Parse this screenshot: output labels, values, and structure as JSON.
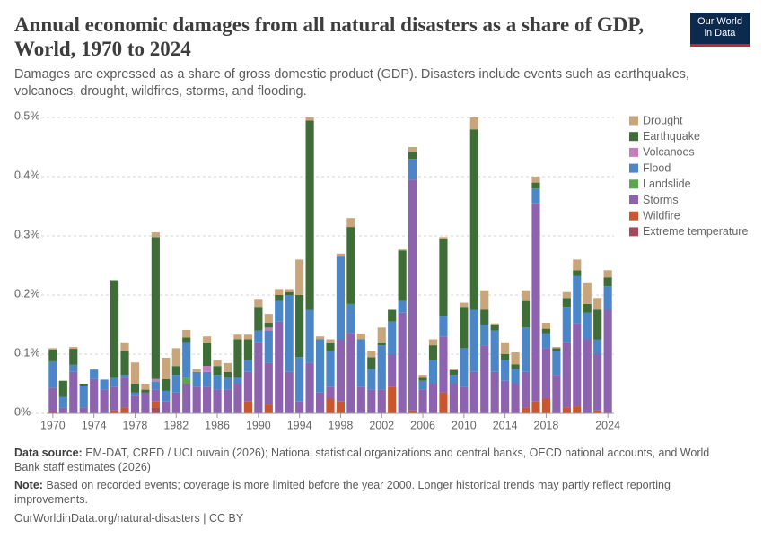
{
  "logo": {
    "lines": [
      "Our World",
      "in Data"
    ]
  },
  "footer": {
    "source_label": "Data source:",
    "source": "EM-DAT, CRED / UCLouvain (2026); National statistical organizations and central banks, OECD national accounts, and World Bank staff estimates (2026)",
    "note_label": "Note:",
    "note": "Based on recorded events; coverage is more limited before the year 2000. Longer historical trends may partly reflect reporting improvements.",
    "url": "OurWorldinData.org/natural-disasters | CC BY"
  },
  "chart_data": {
    "type": "stacked_bar",
    "title": "Annual economic damages from all natural disasters as a share of GDP, World, 1970 to 2024",
    "subtitle": "Damages are expressed as a share of gross domestic product (GDP). Disasters include events such as earthquakes, volcanoes, drought, wildfires, storms, and flooding.",
    "x": [
      1970,
      1971,
      1972,
      1973,
      1974,
      1975,
      1976,
      1977,
      1978,
      1979,
      1980,
      1981,
      1982,
      1983,
      1984,
      1985,
      1986,
      1987,
      1988,
      1989,
      1990,
      1991,
      1992,
      1993,
      1994,
      1995,
      1996,
      1997,
      1998,
      1999,
      2000,
      2001,
      2002,
      2003,
      2004,
      2005,
      2006,
      2007,
      2008,
      2009,
      2010,
      2011,
      2012,
      2013,
      2014,
      2015,
      2016,
      2017,
      2018,
      2019,
      2020,
      2021,
      2022,
      2023,
      2024
    ],
    "xlim": [
      1969.4,
      2024.6
    ],
    "xticks": [
      1970,
      1974,
      1978,
      1982,
      1986,
      1990,
      1994,
      1998,
      2002,
      2006,
      2010,
      2014,
      2018,
      2024
    ],
    "ylim": [
      0,
      0.5
    ],
    "yticks": [
      {
        "value": 0,
        "label": "0%"
      },
      {
        "value": 0.1,
        "label": "0.1%"
      },
      {
        "value": 0.2,
        "label": "0.2%"
      },
      {
        "value": 0.3,
        "label": "0.3%"
      },
      {
        "value": 0.4,
        "label": "0.4%"
      },
      {
        "value": 0.5,
        "label": "0.5%"
      }
    ],
    "grid": true,
    "legend": "right",
    "series": [
      {
        "name": "Drought",
        "color": "#c8a57b",
        "values": [
          0.002,
          0,
          0.003,
          0,
          0,
          0,
          0,
          0.015,
          0.036,
          0.01,
          0.008,
          0.036,
          0.03,
          0.013,
          0.005,
          0.01,
          0.01,
          0.015,
          0.008,
          0.008,
          0.012,
          0.015,
          0.01,
          0.005,
          0.06,
          0.005,
          0.005,
          0.005,
          0.005,
          0.015,
          0.01,
          0.01,
          0.025,
          0,
          0.002,
          0.008,
          0.005,
          0.01,
          0.003,
          0.002,
          0.007,
          0.02,
          0.033,
          0.002,
          0.02,
          0.02,
          0.018,
          0.01,
          0.01,
          0.002,
          0.01,
          0.018,
          0.035,
          0.02,
          0.012
        ]
      },
      {
        "name": "Earthquake",
        "color": "#3f6d37",
        "values": [
          0.02,
          0.027,
          0.027,
          0.003,
          0,
          0,
          0.165,
          0.04,
          0.015,
          0.005,
          0.24,
          0.02,
          0.015,
          0.008,
          0,
          0.04,
          0.015,
          0.01,
          0.065,
          0.035,
          0.04,
          0.008,
          0.01,
          0.005,
          0.105,
          0.32,
          0,
          0.015,
          0,
          0.13,
          0,
          0.02,
          0.005,
          0.02,
          0.085,
          0.012,
          0.005,
          0.025,
          0.13,
          0.008,
          0.07,
          0.305,
          0.025,
          0.01,
          0.01,
          0.008,
          0.045,
          0.01,
          0.008,
          0.005,
          0.015,
          0.01,
          0.015,
          0.05,
          0.015
        ]
      },
      {
        "name": "Volcanoes",
        "color": "#c57dc0",
        "values": [
          0,
          0,
          0,
          0,
          0,
          0,
          0,
          0,
          0,
          0,
          0.005,
          0,
          0,
          0,
          0,
          0.01,
          0,
          0,
          0,
          0,
          0,
          0.005,
          0,
          0,
          0,
          0,
          0,
          0,
          0,
          0,
          0,
          0,
          0,
          0,
          0,
          0,
          0,
          0,
          0,
          0,
          0,
          0,
          0,
          0,
          0,
          0,
          0,
          0,
          0,
          0,
          0,
          0,
          0,
          0,
          0
        ]
      },
      {
        "name": "Flood",
        "color": "#4b86c8",
        "values": [
          0.045,
          0.018,
          0.012,
          0.037,
          0.016,
          0.017,
          0.015,
          0.005,
          0.005,
          0,
          0.013,
          0.018,
          0.03,
          0.06,
          0.025,
          0.025,
          0.025,
          0.02,
          0.01,
          0.02,
          0.02,
          0.055,
          0.035,
          0.13,
          0.075,
          0.09,
          0.09,
          0.06,
          0.14,
          0.05,
          0.08,
          0.035,
          0.075,
          0.055,
          0.02,
          0.035,
          0.015,
          0.04,
          0.035,
          0.015,
          0.065,
          0.105,
          0.035,
          0.07,
          0.035,
          0.025,
          0.075,
          0.025,
          0.025,
          0.04,
          0.06,
          0.08,
          0.045,
          0.025,
          0.04
        ]
      },
      {
        "name": "Landslide",
        "color": "#5ea64d",
        "values": [
          0,
          0,
          0,
          0,
          0,
          0,
          0,
          0,
          0,
          0,
          0,
          0,
          0,
          0.01,
          0,
          0,
          0,
          0,
          0,
          0,
          0,
          0,
          0,
          0,
          0,
          0,
          0,
          0,
          0,
          0,
          0,
          0,
          0,
          0,
          0,
          0,
          0,
          0,
          0,
          0,
          0,
          0,
          0,
          0,
          0,
          0,
          0,
          0,
          0,
          0,
          0,
          0,
          0,
          0,
          0
        ]
      },
      {
        "name": "Storms",
        "color": "#8d62ae",
        "values": [
          0.04,
          0.01,
          0.07,
          0.01,
          0.058,
          0.04,
          0.04,
          0.05,
          0.03,
          0.035,
          0.02,
          0.02,
          0.035,
          0.05,
          0.045,
          0.045,
          0.04,
          0.04,
          0.05,
          0.05,
          0.12,
          0.07,
          0.155,
          0.07,
          0.02,
          0.085,
          0.035,
          0.02,
          0.105,
          0.135,
          0.045,
          0.04,
          0.04,
          0.055,
          0.17,
          0.39,
          0.04,
          0.05,
          0.095,
          0.05,
          0.045,
          0.07,
          0.115,
          0.07,
          0.055,
          0.05,
          0.06,
          0.335,
          0.085,
          0.065,
          0.11,
          0.14,
          0.125,
          0.095,
          0.175
        ]
      },
      {
        "name": "Wildfire",
        "color": "#c8562f",
        "values": [
          0,
          0,
          0,
          0,
          0,
          0,
          0.005,
          0.01,
          0,
          0,
          0.01,
          0,
          0,
          0,
          0,
          0,
          0,
          0,
          0,
          0.02,
          0,
          0.015,
          0,
          0,
          0,
          0,
          0,
          0.025,
          0.02,
          0,
          0,
          0,
          0,
          0.045,
          0,
          0.005,
          0,
          0,
          0.035,
          0,
          0,
          0,
          0,
          0,
          0,
          0,
          0.01,
          0.02,
          0.025,
          0,
          0.01,
          0.012,
          0,
          0.005,
          0
        ]
      },
      {
        "name": "Extreme temperature",
        "color": "#a54a5b",
        "values": [
          0.003,
          0,
          0,
          0,
          0,
          0,
          0,
          0,
          0,
          0,
          0.01,
          0,
          0,
          0,
          0,
          0,
          0,
          0,
          0,
          0,
          0,
          0,
          0,
          0,
          0,
          0,
          0,
          0,
          0,
          0,
          0,
          0,
          0,
          0,
          0,
          0,
          0,
          0,
          0,
          0,
          0,
          0,
          0,
          0,
          0,
          0,
          0,
          0,
          0,
          0,
          0,
          0,
          0,
          0,
          0
        ]
      }
    ]
  }
}
